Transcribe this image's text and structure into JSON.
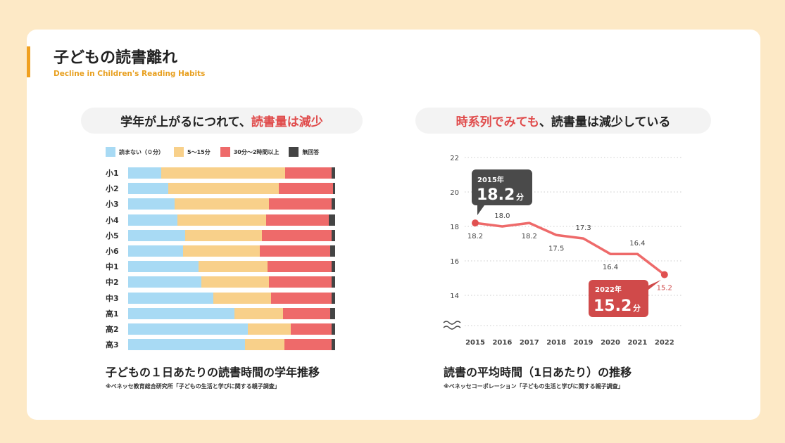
{
  "header": {
    "title": "子どもの読書離れ",
    "subtitle": "Decline in Children's Reading Habits"
  },
  "left": {
    "pill_prefix": "学年が上がるにつれて、",
    "pill_highlight": "読書量は減少",
    "caption": "子どもの１日あたりの読書時間の学年推移",
    "source": "※ベネッセ教育総合研究所「子どもの生活と学びに関する親子調査」"
  },
  "right": {
    "pill_highlight": "時系列でみても",
    "pill_suffix": "、読書量は減少している",
    "caption": "読書の平均時間（1日あたり）の推移",
    "source": "※ベネッセコーポレーション「子どもの生活と学びに関する親子調査」",
    "callout_start": {
      "year": "2015年",
      "value": "18.2",
      "unit": "分"
    },
    "callout_end": {
      "year": "2022年",
      "value": "15.2",
      "unit": "分"
    }
  },
  "chart_data": [
    {
      "type": "bar",
      "stacked": true,
      "orientation": "horizontal",
      "categories": [
        "小1",
        "小2",
        "小3",
        "小4",
        "小5",
        "小6",
        "中1",
        "中2",
        "中3",
        "高1",
        "高2",
        "高3"
      ],
      "series": [
        {
          "name": "読まない（０分）",
          "color": "#a8daf4",
          "values": [
            16,
            19.3,
            22.6,
            23.9,
            27.5,
            26.6,
            33.9,
            35.3,
            41.2,
            51.3,
            57.8,
            56.4
          ]
        },
        {
          "name": "5〜15分",
          "color": "#f8d08a",
          "values": [
            60,
            53.5,
            45.4,
            42.8,
            37,
            36.9,
            33.5,
            32.7,
            28,
            23.5,
            20.9,
            19.1
          ]
        },
        {
          "name": "30分〜2時間以上",
          "color": "#ee6a6a",
          "values": [
            22.4,
            26.2,
            30.4,
            30.3,
            33.9,
            34.2,
            31,
            30.4,
            29.2,
            22.9,
            19.7,
            22.9
          ]
        },
        {
          "name": "無回答",
          "color": "#444444",
          "values": [
            1.6,
            1,
            1.6,
            3,
            1.6,
            2.3,
            1.6,
            1.6,
            1.6,
            2.3,
            1.6,
            1.6
          ]
        }
      ],
      "unit": "%",
      "xlim": [
        0,
        100
      ]
    },
    {
      "type": "line",
      "x": [
        "2015",
        "2016",
        "2017",
        "2018",
        "2019",
        "2020",
        "2021",
        "2022"
      ],
      "series": [
        {
          "name": "読書の平均時間",
          "color": "#ee6a6a",
          "values": [
            18.2,
            18.0,
            18.2,
            17.5,
            17.3,
            16.4,
            16.4,
            15.2
          ]
        }
      ],
      "labels": [
        "18.2",
        "18.0",
        "18.2",
        "17.5",
        "17.3",
        "16.4",
        "16.4",
        "15.2"
      ],
      "yticks": [
        "14",
        "16",
        "18",
        "20",
        "22"
      ],
      "ylim": [
        12.2,
        22
      ],
      "grid": true,
      "ylabel": "",
      "xlabel": "",
      "axis_break": true
    }
  ]
}
